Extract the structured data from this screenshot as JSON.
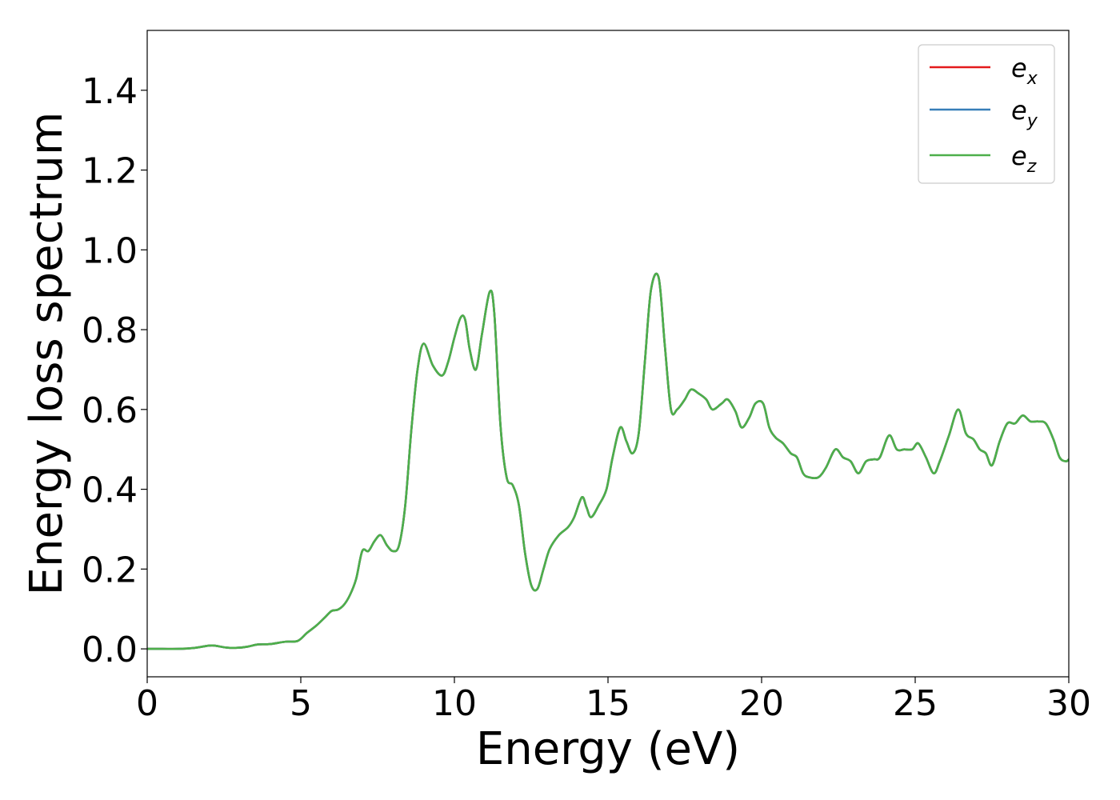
{
  "chart_data": {
    "type": "line",
    "xlabel": "Energy (eV)",
    "ylabel": "Energy loss spectrum",
    "xlim": [
      0,
      30
    ],
    "ylim": [
      -0.07,
      1.55
    ],
    "xticks": [
      0,
      5,
      10,
      15,
      20,
      25,
      30
    ],
    "yticks": [
      0.0,
      0.2,
      0.4,
      0.6,
      0.8,
      1.0,
      1.2,
      1.4
    ],
    "xtick_labels": [
      "0",
      "5",
      "10",
      "15",
      "20",
      "25",
      "30"
    ],
    "ytick_labels": [
      "0.0",
      "0.2",
      "0.4",
      "0.6",
      "0.8",
      "1.0",
      "1.2",
      "1.4"
    ],
    "grid": false,
    "legend_position": "top-right",
    "legend": [
      {
        "base": "e",
        "sub": "x",
        "color": "#e41a1c"
      },
      {
        "base": "e",
        "sub": "y",
        "color": "#377eb8"
      },
      {
        "base": "e",
        "sub": "z",
        "color": "#4daf4a"
      }
    ],
    "x": [
      0,
      0.5,
      1.0,
      1.5,
      2.0,
      2.2,
      2.6,
      3.0,
      3.3,
      3.6,
      4.0,
      4.5,
      4.9,
      5.2,
      5.5,
      5.8,
      6.0,
      6.2,
      6.4,
      6.6,
      6.8,
      7.0,
      7.2,
      7.4,
      7.6,
      7.8,
      8.0,
      8.2,
      8.4,
      8.6,
      8.8,
      9.0,
      9.3,
      9.6,
      9.8,
      10.0,
      10.2,
      10.35,
      10.5,
      10.7,
      10.9,
      11.15,
      11.3,
      11.5,
      11.7,
      11.9,
      12.1,
      12.3,
      12.5,
      12.7,
      12.9,
      13.1,
      13.4,
      13.7,
      13.9,
      14.15,
      14.3,
      14.45,
      14.7,
      14.95,
      15.15,
      15.4,
      15.6,
      15.8,
      16.0,
      16.2,
      16.4,
      16.65,
      16.85,
      17.05,
      17.25,
      17.5,
      17.7,
      17.95,
      18.2,
      18.4,
      18.7,
      18.9,
      19.15,
      19.35,
      19.6,
      19.8,
      20.05,
      20.25,
      20.45,
      20.7,
      20.95,
      21.15,
      21.35,
      21.55,
      21.85,
      22.1,
      22.4,
      22.65,
      22.9,
      23.15,
      23.4,
      23.65,
      23.85,
      24.15,
      24.4,
      24.65,
      24.9,
      25.1,
      25.35,
      25.6,
      25.8,
      26.1,
      26.4,
      26.65,
      26.9,
      27.1,
      27.3,
      27.5,
      27.75,
      28.0,
      28.25,
      28.5,
      28.75,
      29.0,
      29.25,
      29.5,
      29.7,
      29.9,
      30.0
    ],
    "series": [
      {
        "name": "e_x",
        "color": "#e41a1c",
        "values": [
          0.0,
          0.0,
          0.0,
          0.002,
          0.008,
          0.008,
          0.003,
          0.003,
          0.006,
          0.011,
          0.012,
          0.018,
          0.02,
          0.04,
          0.058,
          0.08,
          0.095,
          0.098,
          0.11,
          0.135,
          0.175,
          0.245,
          0.245,
          0.27,
          0.285,
          0.26,
          0.245,
          0.26,
          0.36,
          0.55,
          0.7,
          0.765,
          0.71,
          0.685,
          0.72,
          0.78,
          0.83,
          0.825,
          0.75,
          0.7,
          0.79,
          0.895,
          0.84,
          0.56,
          0.43,
          0.41,
          0.36,
          0.24,
          0.16,
          0.15,
          0.2,
          0.25,
          0.285,
          0.305,
          0.33,
          0.38,
          0.355,
          0.33,
          0.36,
          0.4,
          0.48,
          0.555,
          0.52,
          0.49,
          0.54,
          0.72,
          0.9,
          0.93,
          0.76,
          0.6,
          0.6,
          0.625,
          0.65,
          0.64,
          0.625,
          0.6,
          0.615,
          0.625,
          0.595,
          0.555,
          0.58,
          0.615,
          0.615,
          0.555,
          0.53,
          0.515,
          0.49,
          0.48,
          0.44,
          0.43,
          0.43,
          0.455,
          0.5,
          0.48,
          0.47,
          0.44,
          0.47,
          0.475,
          0.48,
          0.535,
          0.5,
          0.5,
          0.5,
          0.515,
          0.48,
          0.44,
          0.47,
          0.535,
          0.6,
          0.54,
          0.525,
          0.5,
          0.49,
          0.46,
          0.52,
          0.565,
          0.565,
          0.585,
          0.57,
          0.57,
          0.565,
          0.525,
          0.48,
          0.47,
          0.475
        ]
      },
      {
        "name": "e_y",
        "color": "#377eb8",
        "values": [
          0.0,
          0.0,
          0.0,
          0.002,
          0.008,
          0.008,
          0.003,
          0.003,
          0.006,
          0.011,
          0.012,
          0.018,
          0.02,
          0.04,
          0.058,
          0.08,
          0.095,
          0.098,
          0.11,
          0.135,
          0.175,
          0.245,
          0.245,
          0.27,
          0.285,
          0.26,
          0.245,
          0.26,
          0.36,
          0.55,
          0.7,
          0.765,
          0.71,
          0.685,
          0.72,
          0.78,
          0.83,
          0.825,
          0.75,
          0.7,
          0.79,
          0.895,
          0.84,
          0.56,
          0.43,
          0.41,
          0.36,
          0.24,
          0.16,
          0.15,
          0.2,
          0.25,
          0.285,
          0.305,
          0.33,
          0.38,
          0.355,
          0.33,
          0.36,
          0.4,
          0.48,
          0.555,
          0.52,
          0.49,
          0.54,
          0.72,
          0.9,
          0.93,
          0.76,
          0.6,
          0.6,
          0.625,
          0.65,
          0.64,
          0.625,
          0.6,
          0.615,
          0.625,
          0.595,
          0.555,
          0.58,
          0.615,
          0.615,
          0.555,
          0.53,
          0.515,
          0.49,
          0.48,
          0.44,
          0.43,
          0.43,
          0.455,
          0.5,
          0.48,
          0.47,
          0.44,
          0.47,
          0.475,
          0.48,
          0.535,
          0.5,
          0.5,
          0.5,
          0.515,
          0.48,
          0.44,
          0.47,
          0.535,
          0.6,
          0.54,
          0.525,
          0.5,
          0.49,
          0.46,
          0.52,
          0.565,
          0.565,
          0.585,
          0.57,
          0.57,
          0.565,
          0.525,
          0.48,
          0.47,
          0.475
        ]
      },
      {
        "name": "e_z",
        "color": "#4daf4a",
        "values": [
          0.0,
          0.0,
          0.0,
          0.002,
          0.008,
          0.008,
          0.003,
          0.003,
          0.006,
          0.011,
          0.012,
          0.018,
          0.02,
          0.04,
          0.058,
          0.08,
          0.095,
          0.098,
          0.11,
          0.135,
          0.175,
          0.245,
          0.245,
          0.27,
          0.285,
          0.26,
          0.245,
          0.26,
          0.36,
          0.55,
          0.7,
          0.765,
          0.71,
          0.685,
          0.72,
          0.78,
          0.83,
          0.825,
          0.75,
          0.7,
          0.79,
          0.895,
          0.84,
          0.56,
          0.43,
          0.41,
          0.36,
          0.24,
          0.16,
          0.15,
          0.2,
          0.25,
          0.285,
          0.305,
          0.33,
          0.38,
          0.355,
          0.33,
          0.36,
          0.4,
          0.48,
          0.555,
          0.52,
          0.49,
          0.54,
          0.72,
          0.9,
          0.93,
          0.76,
          0.6,
          0.6,
          0.625,
          0.65,
          0.64,
          0.625,
          0.6,
          0.615,
          0.625,
          0.595,
          0.555,
          0.58,
          0.615,
          0.615,
          0.555,
          0.53,
          0.515,
          0.49,
          0.48,
          0.44,
          0.43,
          0.43,
          0.455,
          0.5,
          0.48,
          0.47,
          0.44,
          0.47,
          0.475,
          0.48,
          0.535,
          0.5,
          0.5,
          0.5,
          0.515,
          0.48,
          0.44,
          0.47,
          0.535,
          0.6,
          0.54,
          0.525,
          0.5,
          0.49,
          0.46,
          0.52,
          0.565,
          0.565,
          0.585,
          0.57,
          0.57,
          0.565,
          0.525,
          0.48,
          0.47,
          0.475
        ]
      }
    ]
  }
}
